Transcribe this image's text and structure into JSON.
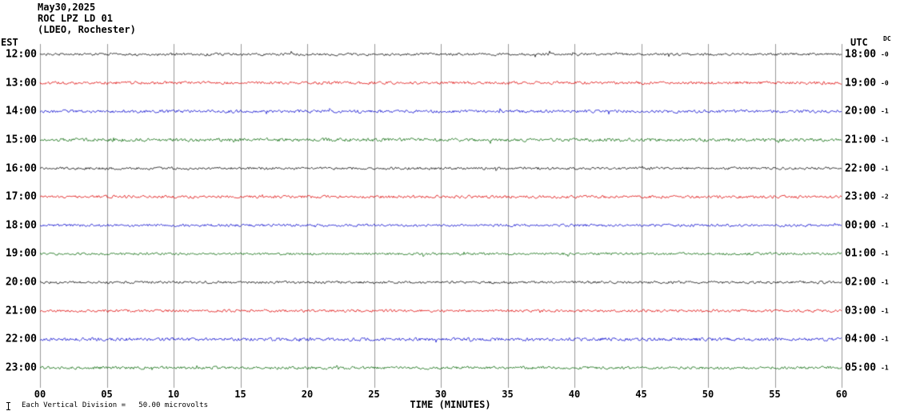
{
  "header": {
    "date": "May30,2025",
    "station": "ROC LPZ LD 01",
    "location": "(LDEO, Rochester)"
  },
  "corners": {
    "left_tz": "EST",
    "right_tz": "UTC",
    "dc": "DC"
  },
  "x_axis": {
    "label": "TIME (MINUTES)",
    "ticks": [
      "00",
      "05",
      "10",
      "15",
      "20",
      "25",
      "30",
      "35",
      "40",
      "45",
      "50",
      "55",
      "60"
    ]
  },
  "footer": {
    "scale_note": "Each Vertical Division =   50.00 microvolts",
    "scale_icon": "division-scale-icon"
  },
  "chart_data": {
    "type": "line",
    "title": "ROC LPZ LD 01 helicorder (LDEO, Rochester) May30,2025",
    "xlabel": "TIME (MINUTES)",
    "x_range": [
      0,
      60
    ],
    "minutes_per_row": 60,
    "vertical_division_microvolts": 50.0,
    "grid": "vertical gridlines every 5 minutes, full plot height",
    "grid_color": "#999999",
    "trace_color_cycle": [
      "#000000",
      "#dd0000",
      "#0000cc",
      "#006600"
    ],
    "signal_description": "flat background noise on every row; no visible seismic events; peak amplitude well under one vertical division",
    "rows": [
      {
        "est": "12:00",
        "utc": "18:00",
        "dc": "-0",
        "color": "#000000"
      },
      {
        "est": "13:00",
        "utc": "19:00",
        "dc": "-0",
        "color": "#dd0000"
      },
      {
        "est": "14:00",
        "utc": "20:00",
        "dc": "-1",
        "color": "#0000cc"
      },
      {
        "est": "15:00",
        "utc": "21:00",
        "dc": "-1",
        "color": "#006600"
      },
      {
        "est": "16:00",
        "utc": "22:00",
        "dc": "-1",
        "color": "#000000"
      },
      {
        "est": "17:00",
        "utc": "23:00",
        "dc": "-2",
        "color": "#dd0000"
      },
      {
        "est": "18:00",
        "utc": "00:00",
        "dc": "-1",
        "color": "#0000cc"
      },
      {
        "est": "19:00",
        "utc": "01:00",
        "dc": "-1",
        "color": "#006600"
      },
      {
        "est": "20:00",
        "utc": "02:00",
        "dc": "-1",
        "color": "#000000"
      },
      {
        "est": "21:00",
        "utc": "03:00",
        "dc": "-1",
        "color": "#dd0000"
      },
      {
        "est": "22:00",
        "utc": "04:00",
        "dc": "-1",
        "color": "#0000cc"
      },
      {
        "est": "23:00",
        "utc": "05:00",
        "dc": "-1",
        "color": "#006600"
      }
    ]
  }
}
